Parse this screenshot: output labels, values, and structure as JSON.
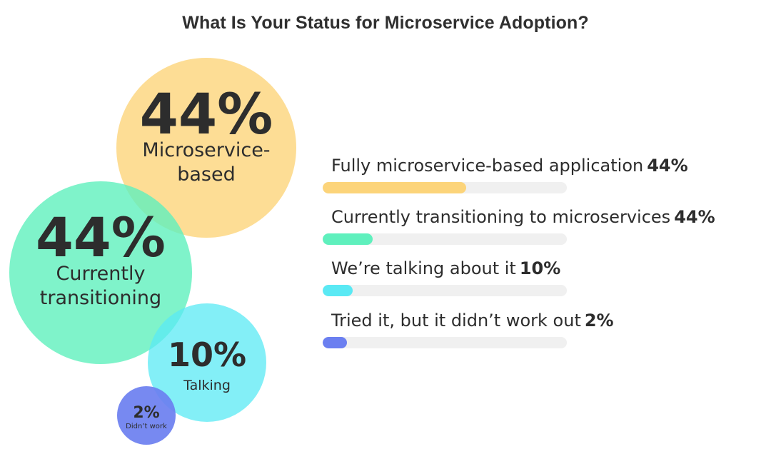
{
  "chart_data": {
    "type": "bar",
    "title": "What Is Your Status for Microservice Adoption?",
    "categories": [
      "Fully microservice-based application",
      "Currently transitioning to microservices",
      "We’re talking about it",
      "Tried it, but it didn’t work out"
    ],
    "values": [
      44,
      44,
      10,
      2
    ],
    "value_labels": [
      "44%",
      "44%",
      "10%",
      "2%"
    ],
    "colors": [
      "#fcd47a",
      "#5ff0bd",
      "#5ae9f4",
      "#6b7ff0"
    ],
    "bubbles": [
      {
        "pct": "44%",
        "lines": [
          "Microservice-",
          "based"
        ],
        "color": "#fcd47a"
      },
      {
        "pct": "44%",
        "lines": [
          "Currently",
          "transitioning"
        ],
        "color": "#5ff0bd"
      },
      {
        "pct": "10%",
        "lines": [
          "Talking"
        ],
        "color": "#5ae9f4"
      },
      {
        "pct": "2%",
        "lines": [
          "Didn’t work"
        ],
        "color": "#6b7ff0"
      }
    ],
    "xlabel": "",
    "ylabel": "",
    "ylim": [
      0,
      100
    ]
  }
}
